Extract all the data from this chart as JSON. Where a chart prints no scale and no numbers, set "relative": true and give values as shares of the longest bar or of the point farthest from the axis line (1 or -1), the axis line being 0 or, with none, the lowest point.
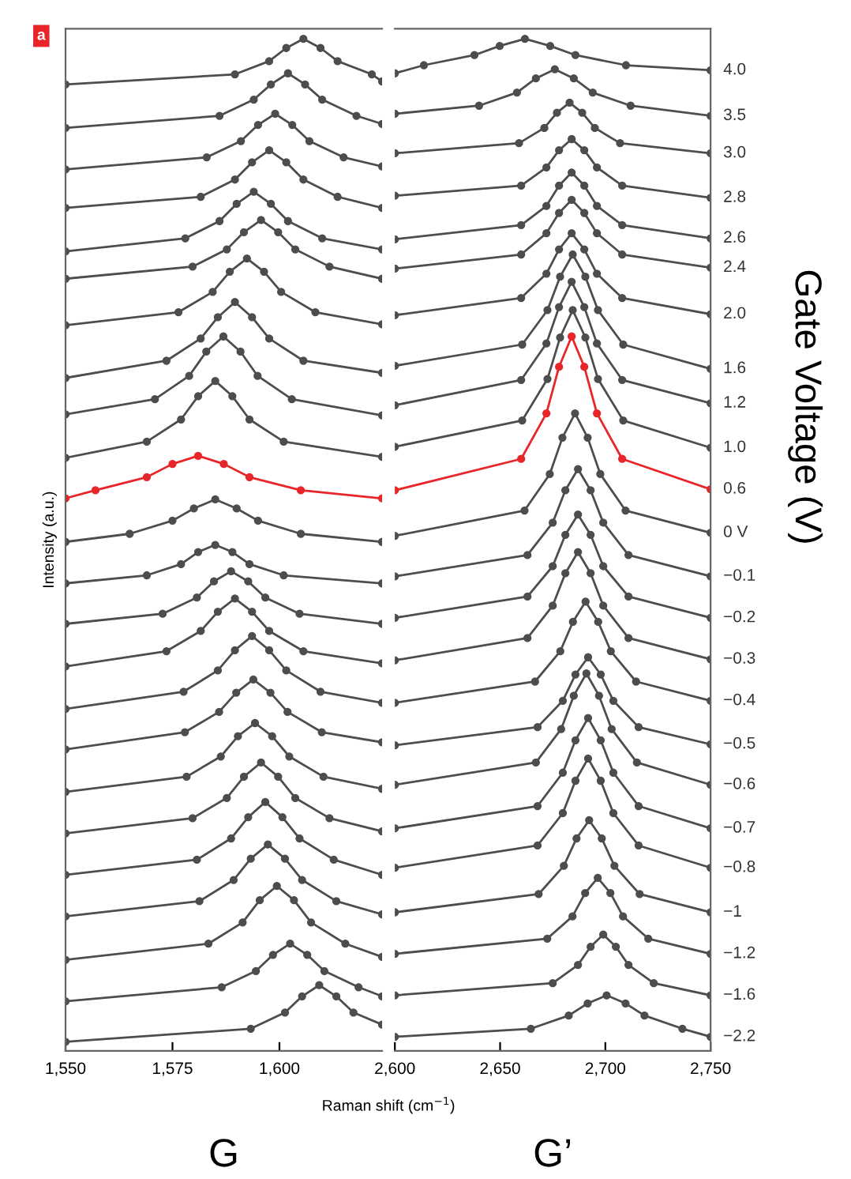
{
  "chart_data": [
    {
      "type": "line",
      "title": "a",
      "ylabel": "Intensity (a.u.)",
      "annotations": [
        "G"
      ],
      "relative": true,
      "marker": "circle",
      "line_style": "solid",
      "xlim": [
        1550,
        1624
      ],
      "xticks": [
        {
          "value": 1550,
          "label": "1,550"
        },
        {
          "value": 1575,
          "label": "1,575"
        },
        {
          "value": 1600,
          "label": "1,600"
        }
      ],
      "series": [
        {
          "color": "#4d4d4d",
          "x": [
            1550,
            1589.6,
            1597.6,
            1601.6,
            1605.6,
            1609.6,
            1613.6,
            1621.6,
            1624
          ],
          "values": [
            0.955,
            0.965,
            0.978,
            0.991,
            1,
            0.991,
            0.978,
            0.965,
            0.958
          ]
        },
        {
          "color": "#4d4d4d",
          "x": [
            1550,
            1586,
            1594,
            1598,
            1602,
            1606,
            1610,
            1618,
            1624
          ],
          "values": [
            0.912,
            0.924,
            0.94,
            0.955,
            0.966,
            0.955,
            0.94,
            0.924,
            0.916
          ]
        },
        {
          "color": "#4d4d4d",
          "x": [
            1550,
            1583,
            1591,
            1595,
            1599,
            1603,
            1607,
            1615,
            1624
          ],
          "values": [
            0.871,
            0.883,
            0.899,
            0.915,
            0.926,
            0.915,
            0.899,
            0.883,
            0.874
          ]
        },
        {
          "color": "#4d4d4d",
          "x": [
            1550,
            1581.6,
            1589.6,
            1593.6,
            1597.6,
            1601.6,
            1605.6,
            1613.6,
            1624
          ],
          "values": [
            0.833,
            0.844,
            0.861,
            0.878,
            0.89,
            0.878,
            0.861,
            0.844,
            0.833
          ]
        },
        {
          "color": "#4d4d4d",
          "x": [
            1550,
            1578,
            1586,
            1590,
            1594,
            1598,
            1602,
            1610,
            1624
          ],
          "values": [
            0.79,
            0.803,
            0.82,
            0.837,
            0.849,
            0.837,
            0.82,
            0.803,
            0.792
          ]
        },
        {
          "color": "#4d4d4d",
          "x": [
            1550,
            1579.7,
            1587.7,
            1591.7,
            1595.7,
            1599.7,
            1603.7,
            1611.7,
            1624
          ],
          "values": [
            0.763,
            0.775,
            0.792,
            0.809,
            0.821,
            0.809,
            0.792,
            0.775,
            0.763
          ]
        },
        {
          "color": "#4d4d4d",
          "x": [
            1550,
            1576.4,
            1584.4,
            1588.4,
            1592.4,
            1596.4,
            1600.4,
            1608.4,
            1624
          ],
          "values": [
            0.717,
            0.73,
            0.75,
            0.77,
            0.783,
            0.77,
            0.75,
            0.73,
            0.718
          ]
        },
        {
          "color": "#4d4d4d",
          "x": [
            1550,
            1573.6,
            1581.6,
            1585.6,
            1589.6,
            1593.6,
            1597.6,
            1605.6,
            1624
          ],
          "values": [
            0.665,
            0.682,
            0.704,
            0.725,
            0.74,
            0.725,
            0.704,
            0.682,
            0.67
          ]
        },
        {
          "color": "#4d4d4d",
          "x": [
            1550,
            1570.9,
            1578.9,
            1582.9,
            1586.9,
            1590.9,
            1594.9,
            1602.9,
            1624
          ],
          "values": [
            0.629,
            0.644,
            0.667,
            0.691,
            0.706,
            0.691,
            0.667,
            0.644,
            0.628
          ]
        },
        {
          "color": "#4d4d4d",
          "x": [
            1550,
            1569,
            1577,
            1581,
            1585,
            1589,
            1593,
            1601,
            1624
          ],
          "values": [
            0.586,
            0.602,
            0.624,
            0.647,
            0.662,
            0.647,
            0.624,
            0.602,
            0.587
          ]
        },
        {
          "color": "#e8262a",
          "x": [
            1550,
            1557,
            1569,
            1575,
            1581,
            1587,
            1593,
            1605,
            1624
          ],
          "values": [
            0.546,
            0.554,
            0.567,
            0.58,
            0.588,
            0.58,
            0.567,
            0.554,
            0.546
          ]
        },
        {
          "color": "#4d4d4d",
          "x": [
            1550,
            1565,
            1575,
            1580,
            1585,
            1590,
            1595,
            1605,
            1624
          ],
          "values": [
            0.503,
            0.511,
            0.524,
            0.536,
            0.545,
            0.536,
            0.524,
            0.511,
            0.503
          ]
        },
        {
          "color": "#4d4d4d",
          "x": [
            1550,
            1569,
            1577,
            1581,
            1585,
            1589,
            1593,
            1601,
            1624
          ],
          "values": [
            0.462,
            0.47,
            0.481,
            0.493,
            0.5,
            0.493,
            0.481,
            0.47,
            0.462
          ]
        },
        {
          "color": "#4d4d4d",
          "x": [
            1550,
            1572.7,
            1580.7,
            1584.7,
            1588.7,
            1592.7,
            1596.7,
            1604.7,
            1624
          ],
          "values": [
            0.422,
            0.432,
            0.448,
            0.464,
            0.474,
            0.464,
            0.448,
            0.432,
            0.422
          ]
        },
        {
          "color": "#4d4d4d",
          "x": [
            1550,
            1573.6,
            1581.6,
            1585.6,
            1589.6,
            1593.6,
            1597.6,
            1605.6,
            1624
          ],
          "values": [
            0.38,
            0.395,
            0.415,
            0.434,
            0.447,
            0.434,
            0.415,
            0.395,
            0.383
          ]
        },
        {
          "color": "#4d4d4d",
          "x": [
            1550,
            1577.6,
            1585.6,
            1589.6,
            1593.6,
            1597.6,
            1601.6,
            1609.6,
            1624
          ],
          "values": [
            0.338,
            0.355,
            0.376,
            0.396,
            0.41,
            0.396,
            0.376,
            0.355,
            0.344
          ]
        },
        {
          "color": "#4d4d4d",
          "x": [
            1550,
            1577.9,
            1585.9,
            1589.9,
            1593.9,
            1597.9,
            1601.9,
            1609.9,
            1624
          ],
          "values": [
            0.298,
            0.315,
            0.335,
            0.354,
            0.367,
            0.354,
            0.335,
            0.315,
            0.305
          ]
        },
        {
          "color": "#4d4d4d",
          "x": [
            1550,
            1578.3,
            1586.3,
            1590.3,
            1594.3,
            1598.3,
            1602.3,
            1610.3,
            1624
          ],
          "values": [
            0.256,
            0.271,
            0.291,
            0.311,
            0.324,
            0.311,
            0.291,
            0.271,
            0.259
          ]
        },
        {
          "color": "#4d4d4d",
          "x": [
            1550,
            1579.7,
            1587.7,
            1591.7,
            1595.7,
            1599.7,
            1603.7,
            1611.7,
            1624
          ],
          "values": [
            0.215,
            0.23,
            0.25,
            0.271,
            0.285,
            0.271,
            0.25,
            0.23,
            0.217
          ]
        },
        {
          "color": "#4d4d4d",
          "x": [
            1550,
            1580.7,
            1588.7,
            1592.7,
            1596.7,
            1600.7,
            1604.7,
            1612.7,
            1624
          ],
          "values": [
            0.174,
            0.189,
            0.21,
            0.231,
            0.246,
            0.231,
            0.21,
            0.189,
            0.174
          ]
        },
        {
          "color": "#4d4d4d",
          "x": [
            1550,
            1581.3,
            1589.3,
            1593.3,
            1597.3,
            1601.3,
            1605.3,
            1613.3,
            1624
          ],
          "values": [
            0.133,
            0.148,
            0.169,
            0.19,
            0.204,
            0.19,
            0.169,
            0.148,
            0.135
          ]
        },
        {
          "color": "#4d4d4d",
          "x": [
            1550,
            1583.4,
            1591.4,
            1595.4,
            1599.4,
            1603.4,
            1607.4,
            1615.4,
            1624
          ],
          "values": [
            0.09,
            0.106,
            0.127,
            0.149,
            0.163,
            0.149,
            0.127,
            0.106,
            0.093
          ]
        },
        {
          "color": "#4d4d4d",
          "x": [
            1550,
            1586.5,
            1594.5,
            1598.5,
            1602.5,
            1606.5,
            1610.5,
            1618.5,
            1624
          ],
          "values": [
            0.049,
            0.063,
            0.079,
            0.095,
            0.106,
            0.095,
            0.079,
            0.063,
            0.054
          ]
        },
        {
          "color": "#4d4d4d",
          "x": [
            1550,
            1593.3,
            1601.3,
            1605.3,
            1609.3,
            1613.3,
            1617.3,
            1624
          ],
          "values": [
            0.009,
            0.022,
            0.038,
            0.054,
            0.065,
            0.054,
            0.038,
            0.026
          ]
        }
      ]
    },
    {
      "type": "line",
      "xlabel": "Raman shift (cm$^{−1}$)",
      "y2label": "Gate Voltage (V)",
      "annotations": [
        "G’"
      ],
      "relative": true,
      "marker": "circle",
      "line_style": "solid",
      "xlim": [
        2600,
        2750
      ],
      "xticks": [
        {
          "value": 2600,
          "label": "2,600"
        },
        {
          "value": 2650,
          "label": "2,650"
        },
        {
          "value": 2700,
          "label": "2,700"
        },
        {
          "value": 2750,
          "label": "2,750"
        }
      ],
      "series": [
        {
          "name": "4.0",
          "color": "#4d4d4d",
          "x": [
            2600,
            2613.8,
            2637.8,
            2649.8,
            2661.8,
            2673.8,
            2685.8,
            2709.8,
            2750
          ],
          "values": [
            0.966,
            0.974,
            0.984,
            0.993,
            1,
            0.993,
            0.984,
            0.974,
            0.969
          ]
        },
        {
          "name": "3.5",
          "color": "#4d4d4d",
          "x": [
            2600,
            2640,
            2658,
            2667,
            2676,
            2685,
            2694,
            2712,
            2750
          ],
          "values": [
            0.926,
            0.934,
            0.947,
            0.961,
            0.97,
            0.961,
            0.947,
            0.934,
            0.924
          ]
        },
        {
          "name": "3.0",
          "color": "#4d4d4d",
          "x": [
            2600,
            2659,
            2671,
            2677,
            2683,
            2689,
            2695,
            2707,
            2750
          ],
          "values": [
            0.887,
            0.897,
            0.912,
            0.927,
            0.937,
            0.927,
            0.912,
            0.897,
            0.887
          ]
        },
        {
          "name": "2.8",
          "color": "#4d4d4d",
          "x": [
            2600,
            2660,
            2672,
            2678,
            2684,
            2690,
            2696,
            2708,
            2750
          ],
          "values": [
            0.845,
            0.855,
            0.873,
            0.89,
            0.901,
            0.89,
            0.873,
            0.855,
            0.843
          ]
        },
        {
          "name": "2.6",
          "color": "#4d4d4d",
          "x": [
            2600,
            2660,
            2672,
            2678,
            2684,
            2690,
            2696,
            2708,
            2750
          ],
          "values": [
            0.802,
            0.816,
            0.835,
            0.855,
            0.868,
            0.855,
            0.835,
            0.816,
            0.803
          ]
        },
        {
          "name": "2.4",
          "color": "#4d4d4d",
          "x": [
            2600,
            2660,
            2672,
            2678,
            2684,
            2690,
            2696,
            2708,
            2750
          ],
          "values": [
            0.773,
            0.787,
            0.808,
            0.828,
            0.841,
            0.828,
            0.808,
            0.787,
            0.774
          ]
        },
        {
          "name": "2.0",
          "color": "#4d4d4d",
          "x": [
            2600,
            2660,
            2672,
            2678,
            2684,
            2690,
            2696,
            2708,
            2750
          ],
          "values": [
            0.727,
            0.744,
            0.768,
            0.792,
            0.808,
            0.792,
            0.768,
            0.744,
            0.728
          ]
        },
        {
          "name": "1.6",
          "color": "#4d4d4d",
          "x": [
            2600,
            2660.5,
            2672.5,
            2678.5,
            2684.5,
            2690.5,
            2696.5,
            2708.5,
            2750
          ],
          "values": [
            0.677,
            0.698,
            0.732,
            0.765,
            0.787,
            0.765,
            0.732,
            0.698,
            0.674
          ]
        },
        {
          "name": "1.2",
          "color": "#4d4d4d",
          "x": [
            2600,
            2660,
            2672,
            2678,
            2684,
            2690,
            2696,
            2708,
            2750
          ],
          "values": [
            0.638,
            0.663,
            0.699,
            0.735,
            0.76,
            0.735,
            0.699,
            0.663,
            0.64
          ]
        },
        {
          "name": "1.0",
          "color": "#4d4d4d",
          "x": [
            2600,
            2660.5,
            2672.5,
            2678.5,
            2684.5,
            2690.5,
            2696.5,
            2708.5,
            2750
          ],
          "values": [
            0.597,
            0.623,
            0.664,
            0.705,
            0.732,
            0.705,
            0.664,
            0.623,
            0.596
          ]
        },
        {
          "name": "0.6",
          "color": "#e8262a",
          "x": [
            2600,
            2660,
            2672,
            2678,
            2684,
            2690,
            2696,
            2708,
            2750
          ],
          "values": [
            0.554,
            0.585,
            0.63,
            0.676,
            0.706,
            0.676,
            0.63,
            0.585,
            0.555
          ]
        },
        {
          "name": "0 V",
          "color": "#4d4d4d",
          "x": [
            2600,
            2661.6,
            2673.6,
            2679.6,
            2685.6,
            2691.6,
            2697.6,
            2709.6,
            2750
          ],
          "values": [
            0.509,
            0.534,
            0.57,
            0.606,
            0.63,
            0.606,
            0.57,
            0.534,
            0.512
          ]
        },
        {
          "name": "−0.1",
          "color": "#4d4d4d",
          "x": [
            2600,
            2663,
            2675,
            2681,
            2687,
            2693,
            2699,
            2711,
            2750
          ],
          "values": [
            0.469,
            0.49,
            0.522,
            0.554,
            0.575,
            0.554,
            0.522,
            0.49,
            0.469
          ]
        },
        {
          "name": "−0.2",
          "color": "#4d4d4d",
          "x": [
            2600,
            2663,
            2675,
            2681,
            2687,
            2693,
            2699,
            2711,
            2750
          ],
          "values": [
            0.428,
            0.449,
            0.479,
            0.51,
            0.53,
            0.51,
            0.479,
            0.449,
            0.428
          ]
        },
        {
          "name": "−0.3",
          "color": "#4d4d4d",
          "x": [
            2600,
            2663,
            2675,
            2681,
            2687,
            2693,
            2699,
            2711,
            2750
          ],
          "values": [
            0.386,
            0.408,
            0.44,
            0.472,
            0.493,
            0.472,
            0.44,
            0.408,
            0.387
          ]
        },
        {
          "name": "−0.4",
          "color": "#4d4d4d",
          "x": [
            2600,
            2666.6,
            2678.6,
            2684.6,
            2690.6,
            2696.6,
            2702.6,
            2714.6,
            2750
          ],
          "values": [
            0.344,
            0.365,
            0.395,
            0.424,
            0.444,
            0.424,
            0.395,
            0.365,
            0.346
          ]
        },
        {
          "name": "−0.5",
          "color": "#4d4d4d",
          "x": [
            2600,
            2667.8,
            2679.8,
            2685.8,
            2691.8,
            2697.8,
            2703.8,
            2715.8,
            2750
          ],
          "values": [
            0.302,
            0.32,
            0.346,
            0.372,
            0.389,
            0.372,
            0.346,
            0.32,
            0.303
          ]
        },
        {
          "name": "−0.6",
          "color": "#4d4d4d",
          "x": [
            2600,
            2667,
            2679,
            2685,
            2691,
            2697,
            2703,
            2715,
            2750
          ],
          "values": [
            0.263,
            0.285,
            0.318,
            0.351,
            0.373,
            0.351,
            0.318,
            0.285,
            0.263
          ]
        },
        {
          "name": "−0.7",
          "color": "#4d4d4d",
          "x": [
            2600,
            2667.8,
            2679.8,
            2685.8,
            2691.8,
            2697.8,
            2703.8,
            2715.8,
            2750
          ],
          "values": [
            0.22,
            0.242,
            0.275,
            0.307,
            0.329,
            0.307,
            0.275,
            0.242,
            0.22
          ]
        },
        {
          "name": "−0.8",
          "color": "#4d4d4d",
          "x": [
            2600,
            2667.8,
            2679.8,
            2685.8,
            2691.8,
            2697.8,
            2703.8,
            2715.8,
            2750
          ],
          "values": [
            0.181,
            0.203,
            0.235,
            0.267,
            0.289,
            0.267,
            0.235,
            0.203,
            0.181
          ]
        },
        {
          "name": "−1",
          "color": "#4d4d4d",
          "x": [
            2600,
            2668.3,
            2680.3,
            2686.3,
            2692.3,
            2698.3,
            2704.3,
            2716.3,
            2750
          ],
          "values": [
            0.137,
            0.155,
            0.183,
            0.21,
            0.228,
            0.21,
            0.183,
            0.155,
            0.137
          ]
        },
        {
          "name": "−1.2",
          "color": "#4d4d4d",
          "x": [
            2600,
            2672.4,
            2684.4,
            2690.4,
            2696.4,
            2702.4,
            2708.4,
            2720.4,
            2750
          ],
          "values": [
            0.096,
            0.111,
            0.133,
            0.156,
            0.171,
            0.156,
            0.133,
            0.111,
            0.096
          ]
        },
        {
          "name": "−1.6",
          "color": "#4d4d4d",
          "x": [
            2600,
            2675,
            2687,
            2693,
            2699,
            2705,
            2711,
            2723,
            2750
          ],
          "values": [
            0.055,
            0.067,
            0.085,
            0.103,
            0.115,
            0.103,
            0.085,
            0.067,
            0.055
          ]
        },
        {
          "name": "−2.2",
          "color": "#4d4d4d",
          "x": [
            2600,
            2664.6,
            2682.6,
            2691.6,
            2700.6,
            2709.6,
            2718.6,
            2736.6,
            2750
          ],
          "values": [
            0.014,
            0.022,
            0.035,
            0.047,
            0.055,
            0.047,
            0.035,
            0.022,
            0.014
          ]
        }
      ]
    }
  ]
}
